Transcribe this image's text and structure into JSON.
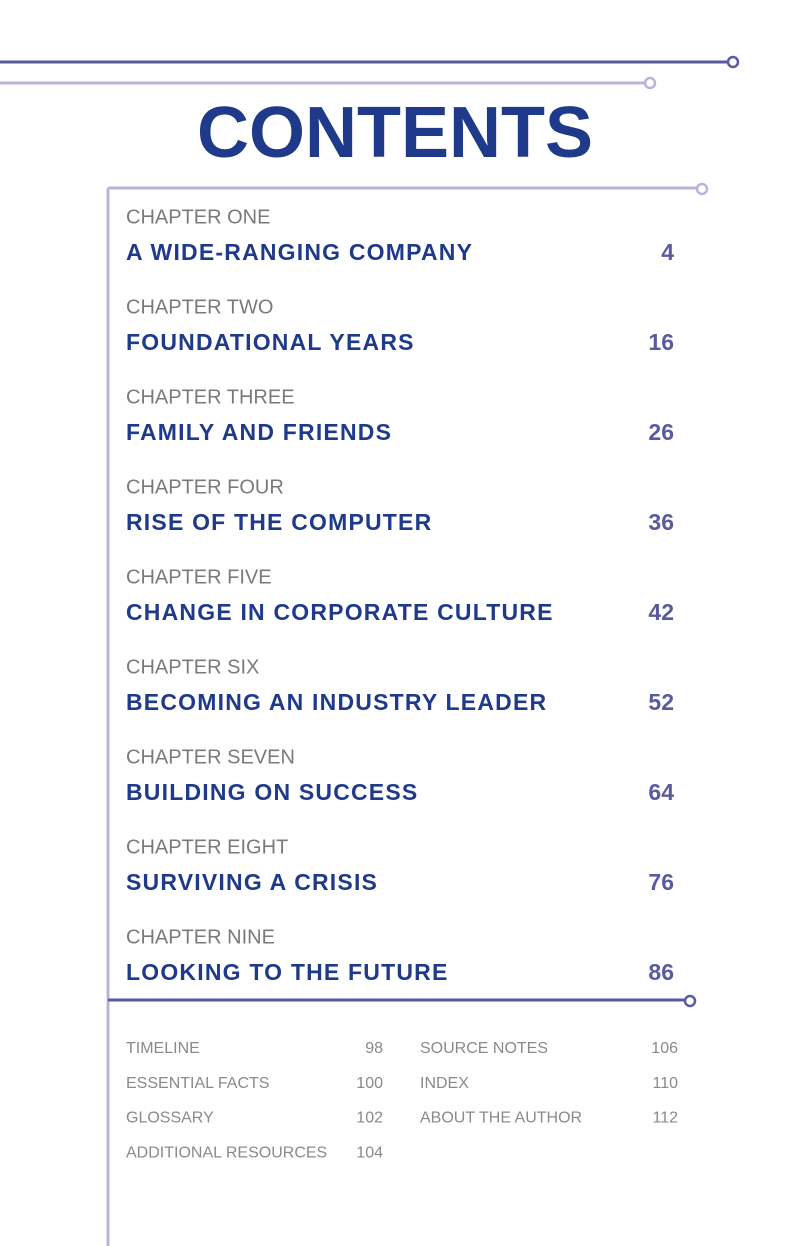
{
  "title": "CONTENTS",
  "chapters": [
    {
      "label": "CHAPTER ONE",
      "title": "A WIDE-RANGING COMPANY",
      "page": 4
    },
    {
      "label": "CHAPTER TWO",
      "title": "FOUNDATIONAL YEARS",
      "page": 16
    },
    {
      "label": "CHAPTER THREE",
      "title": "FAMILY AND FRIENDS",
      "page": 26
    },
    {
      "label": "CHAPTER FOUR",
      "title": "RISE OF THE COMPUTER",
      "page": 36
    },
    {
      "label": "CHAPTER FIVE",
      "title": "CHANGE IN CORPORATE CULTURE",
      "page": 42
    },
    {
      "label": "CHAPTER SIX",
      "title": "BECOMING AN INDUSTRY LEADER",
      "page": 52
    },
    {
      "label": "CHAPTER SEVEN",
      "title": "BUILDING ON SUCCESS",
      "page": 64
    },
    {
      "label": "CHAPTER EIGHT",
      "title": "SURVIVING A CRISIS",
      "page": 76
    },
    {
      "label": "CHAPTER NINE",
      "title": "LOOKING TO THE FUTURE",
      "page": 86
    }
  ],
  "back_matter": {
    "left": [
      {
        "label": "TIMELINE",
        "page": 98
      },
      {
        "label": "ESSENTIAL FACTS",
        "page": 100
      },
      {
        "label": "GLOSSARY",
        "page": 102
      },
      {
        "label": "ADDITIONAL RESOURCES",
        "page": 104
      }
    ],
    "right": [
      {
        "label": "SOURCE NOTES",
        "page": 106
      },
      {
        "label": "INDEX",
        "page": 110
      },
      {
        "label": "ABOUT THE AUTHOR",
        "page": 112
      }
    ]
  }
}
